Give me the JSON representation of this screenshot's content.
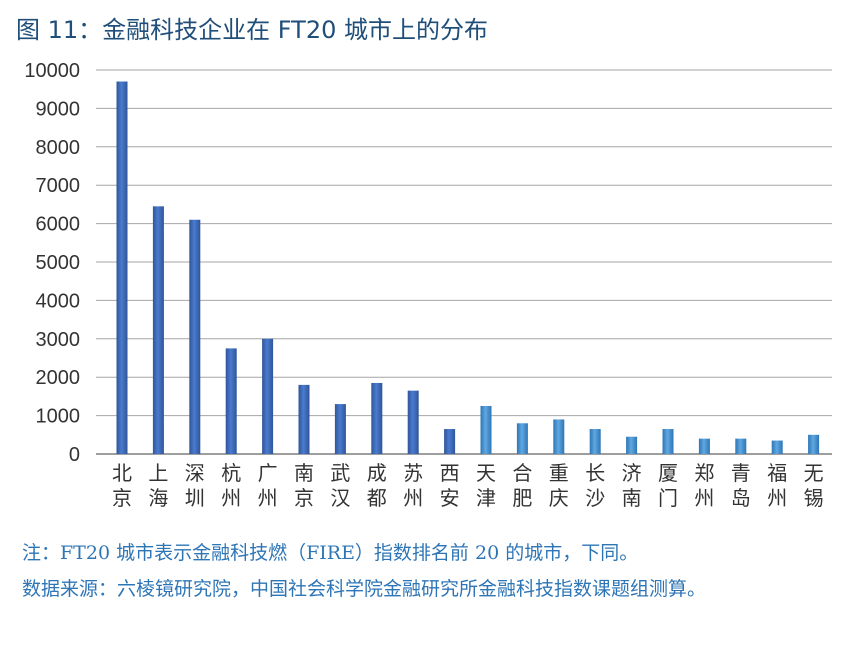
{
  "title": "图 11：金融科技企业在 FT20 城市上的分布",
  "notes": {
    "note": "注：FT20 城市表示金融科技燃（FIRE）指数排名前 20 的城市，下同。",
    "source": "数据来源：六棱镜研究院，中国社会科学院金融研究所金融科技指数课题组测算。"
  },
  "colors": {
    "bar_dark": "#4472c4",
    "bar_light": "#5b9bd5",
    "grid": "#a6a6a6",
    "title": "#1f4e79",
    "note": "#2e75b6"
  },
  "chart_data": {
    "type": "bar",
    "categories": [
      "北京",
      "上海",
      "深圳",
      "杭州",
      "广州",
      "南京",
      "武汉",
      "成都",
      "苏州",
      "西安",
      "天津",
      "合肥",
      "重庆",
      "长沙",
      "济南",
      "厦门",
      "郑州",
      "青岛",
      "福州",
      "无锡"
    ],
    "values": [
      9700,
      6450,
      6100,
      2750,
      3000,
      1800,
      1300,
      1850,
      1650,
      650,
      1250,
      800,
      900,
      650,
      450,
      650,
      400,
      400,
      350,
      500
    ],
    "ylim": [
      0,
      10000
    ],
    "yticks": [
      0,
      1000,
      2000,
      3000,
      4000,
      5000,
      6000,
      7000,
      8000,
      9000,
      10000
    ],
    "grid": true,
    "legend": "none"
  }
}
